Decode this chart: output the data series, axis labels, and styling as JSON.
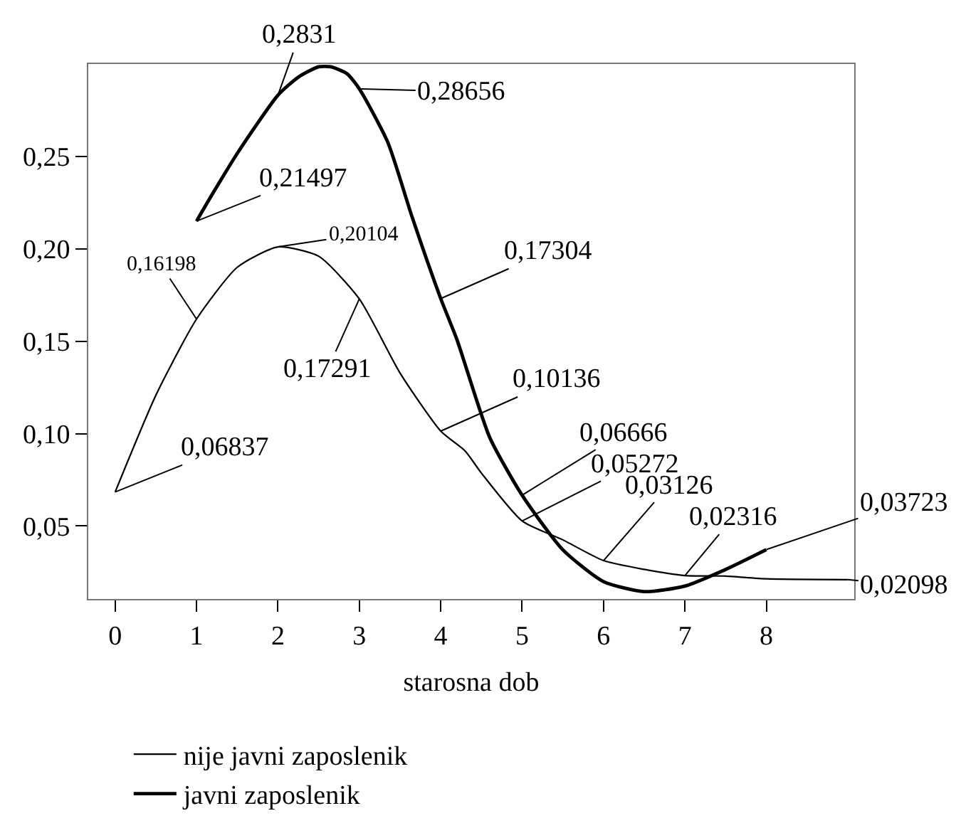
{
  "chart_data": {
    "type": "line",
    "xlabel": "starosna dob",
    "x": [
      0,
      0.5,
      1,
      1.5,
      2,
      2.5,
      3,
      3.5,
      4,
      4.3,
      4.5,
      5,
      5.5,
      6,
      6.5,
      7,
      7.5,
      8,
      9
    ],
    "series": [
      {
        "name": "nije javni zaposlenik",
        "color": "#000000",
        "values": [
          0.06837,
          0.1207,
          0.16198,
          0.19,
          0.20104,
          0.196,
          0.17291,
          0.1328,
          0.10136,
          0.0906,
          0.0786,
          0.05272,
          0.0425,
          0.03126,
          0.0265,
          0.02316,
          0.0229,
          0.0214,
          0.02098
        ]
      },
      {
        "name": "javni zaposlenik",
        "color": "#000000",
        "x": [
          1,
          1.2,
          1.5,
          2,
          2.25,
          2.5,
          2.65,
          2.85,
          3,
          3.35,
          3.65,
          4,
          4.2,
          4.6,
          5,
          5.5,
          6,
          6.5,
          7,
          7.5,
          8
        ],
        "values": [
          0.21497,
          0.23,
          0.2516,
          0.2831,
          0.2929,
          0.2985,
          0.2985,
          0.2947,
          0.28656,
          0.2576,
          0.217,
          0.17304,
          0.1508,
          0.0981,
          0.06666,
          0.0371,
          0.0199,
          0.0145,
          0.0175,
          0.0265,
          0.03723
        ]
      }
    ],
    "xlim": [
      -0.33,
      9.08
    ],
    "ylim": [
      0.0105,
      0.3
    ],
    "xticks": [
      0,
      1,
      2,
      3,
      4,
      5,
      6,
      7,
      8
    ],
    "yticks": [
      {
        "value": 0.05,
        "label": "0,05"
      },
      {
        "value": 0.1,
        "label": "0,10"
      },
      {
        "value": 0.15,
        "label": "0,15"
      },
      {
        "value": 0.2,
        "label": "0,20"
      },
      {
        "value": 0.25,
        "label": "0,25"
      }
    ],
    "annotations": [
      {
        "text": "0,06837",
        "x": 0,
        "y": 0.06837
      },
      {
        "text": "0,16198",
        "x": 1,
        "y": 0.16198
      },
      {
        "text": "0,20104",
        "x": 2,
        "y": 0.20104
      },
      {
        "text": "0,17291",
        "x": 3,
        "y": 0.17291
      },
      {
        "text": "0,10136",
        "x": 4,
        "y": 0.10136
      },
      {
        "text": "0,05272",
        "x": 5,
        "y": 0.05272
      },
      {
        "text": "0,03126",
        "x": 6,
        "y": 0.03126
      },
      {
        "text": "0,02316",
        "x": 7,
        "y": 0.02316
      },
      {
        "text": "0,02098",
        "x": 9,
        "y": 0.02098
      },
      {
        "text": "0,21497",
        "x": 1,
        "y": 0.21497
      },
      {
        "text": "0,2831",
        "x": 2,
        "y": 0.2831
      },
      {
        "text": "0,28656",
        "x": 3,
        "y": 0.28656
      },
      {
        "text": "0,17304",
        "x": 4,
        "y": 0.17304
      },
      {
        "text": "0,06666",
        "x": 5,
        "y": 0.06666
      },
      {
        "text": "0,03723",
        "x": 8,
        "y": 0.03723
      }
    ],
    "legend": "bottom",
    "marker": "none",
    "line_style": "solid"
  }
}
